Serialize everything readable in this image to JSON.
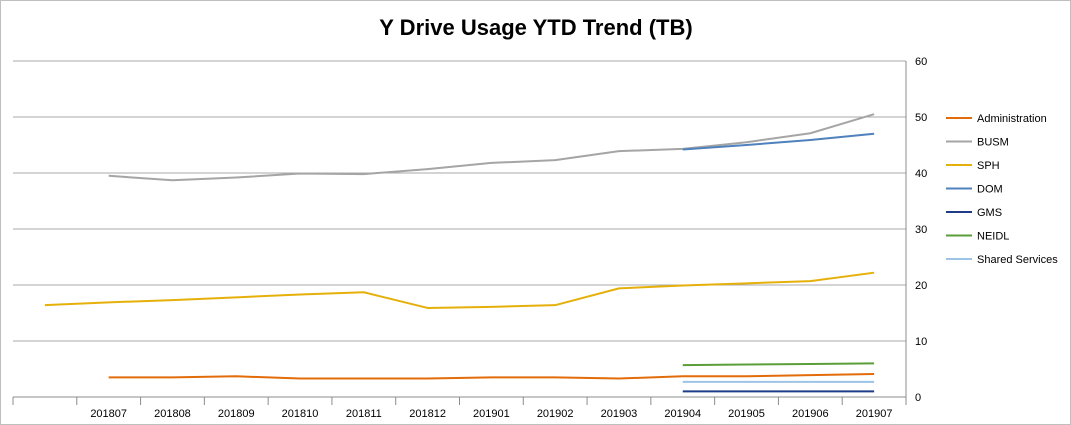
{
  "chart_data": {
    "type": "line",
    "title": "Y Drive Usage YTD Trend (TB)",
    "xlabel": "",
    "ylabel": "",
    "categories": [
      "",
      "201807",
      "201808",
      "201809",
      "201810",
      "201811",
      "201812",
      "201901",
      "201902",
      "201903",
      "201904",
      "201905",
      "201906",
      "201907"
    ],
    "ylim": [
      0,
      60
    ],
    "yticks": [
      0,
      10,
      20,
      30,
      40,
      50,
      60
    ],
    "y_axis_side": "right",
    "grid": true,
    "legend_position": "right",
    "series": [
      {
        "name": "Administration",
        "color": "#E36C0A",
        "values": [
          null,
          3.5,
          3.5,
          3.7,
          3.3,
          3.3,
          3.3,
          3.5,
          3.5,
          3.3,
          3.7,
          3.7,
          3.9,
          4.1
        ]
      },
      {
        "name": "BUSM",
        "color": "#A5A5A5",
        "values": [
          null,
          39.5,
          38.7,
          39.2,
          39.9,
          39.8,
          40.7,
          41.8,
          42.3,
          43.9,
          44.3,
          45.5,
          47.1,
          50.5
        ]
      },
      {
        "name": "SPH",
        "color": "#E6B00A",
        "values": [
          16.4,
          16.9,
          17.3,
          17.8,
          18.3,
          18.7,
          15.9,
          16.1,
          16.4,
          19.4,
          19.9,
          20.3,
          20.7,
          22.2
        ]
      },
      {
        "name": "DOM",
        "color": "#4F81BD",
        "values": [
          null,
          null,
          null,
          null,
          null,
          null,
          null,
          null,
          null,
          null,
          44.2,
          45.0,
          45.9,
          47.0
        ]
      },
      {
        "name": "GMS",
        "color": "#1F3C88",
        "values": [
          null,
          null,
          null,
          null,
          null,
          null,
          null,
          null,
          null,
          null,
          1.0,
          1.0,
          1.0,
          1.0
        ]
      },
      {
        "name": "NEIDL",
        "color": "#5A9E3A",
        "values": [
          null,
          null,
          null,
          null,
          null,
          null,
          null,
          null,
          null,
          null,
          5.7,
          5.8,
          5.9,
          6.0
        ]
      },
      {
        "name": "Shared Services",
        "color": "#9DC3E6",
        "values": [
          null,
          null,
          null,
          null,
          null,
          null,
          null,
          null,
          null,
          null,
          2.7,
          2.7,
          2.7,
          2.7
        ]
      }
    ]
  }
}
